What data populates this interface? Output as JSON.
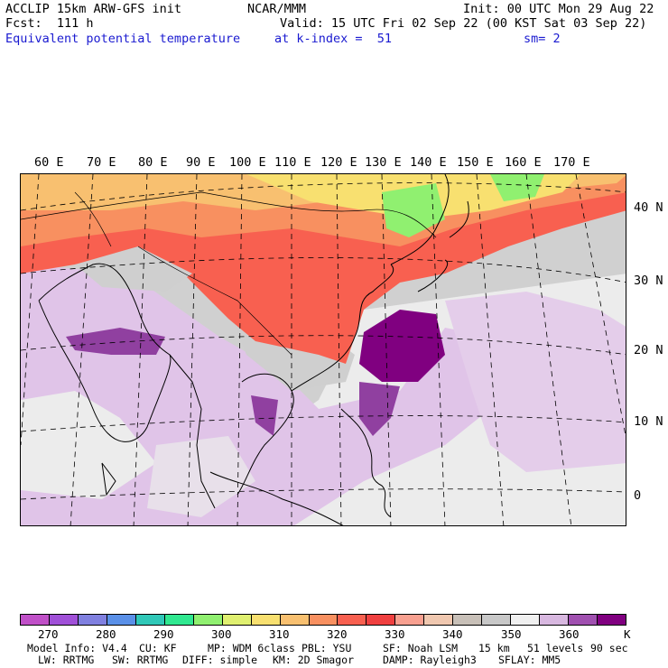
{
  "header": {
    "model_line": "ACCLIP 15km ARW-GFS init",
    "fcst_line": "Fcst:  111 h",
    "field_name": "Equivalent potential temperature",
    "center_label": "NCAR/MMM",
    "init_line": "Init: 00 UTC Mon 29 Aug 22",
    "valid_line": "Valid: 15 UTC Fri 02 Sep 22 (00 KST Sat 03 Sep 22)",
    "level_line": "at k-index =  51",
    "smooth_line": "sm= 2"
  },
  "map": {
    "lon_labels": [
      "60 E",
      "70 E",
      "80 E",
      "90 E",
      "100 E",
      "110 E",
      "120 E",
      "130 E",
      "140 E",
      "150 E",
      "160 E",
      "170 E"
    ],
    "lat_labels": [
      "40 N",
      "30 N",
      "20 N",
      "10 N",
      "0"
    ]
  },
  "colorbar": {
    "units": "K",
    "tick_labels": [
      "270",
      "280",
      "290",
      "300",
      "310",
      "320",
      "330",
      "340",
      "350",
      "360"
    ],
    "colors": [
      "#c050c8",
      "#a050d8",
      "#8080e0",
      "#5a90e8",
      "#30c8b8",
      "#30e890",
      "#90f070",
      "#e0f070",
      "#f8e070",
      "#f8c070",
      "#f89060",
      "#f86050",
      "#f04040",
      "#f8a090",
      "#f0c8b0",
      "#c8c0b8",
      "#c8c8c8",
      "#f0f0f0",
      "#d8b8e0",
      "#a050b0",
      "#800080"
    ]
  },
  "footer": {
    "line1_col1": "Model Info: V4.4",
    "line1_col2": "CU: KF",
    "line1_col3": "MP: WDM 6class",
    "line1_col4": "PBL: YSU",
    "line1_col5": "SF: Noah LSM",
    "line1_col6": "15 km",
    "line1_col7": "51 levels",
    "line1_col8": "90 sec",
    "line2_col1": "LW: RRTMG",
    "line2_col2": "SW: RRTMG",
    "line2_col3": "DIFF: simple",
    "line2_col4": "KM: 2D Smagor",
    "line2_col5": "DAMP: Rayleigh3",
    "line2_col6": "SFLAY: MM5"
  }
}
